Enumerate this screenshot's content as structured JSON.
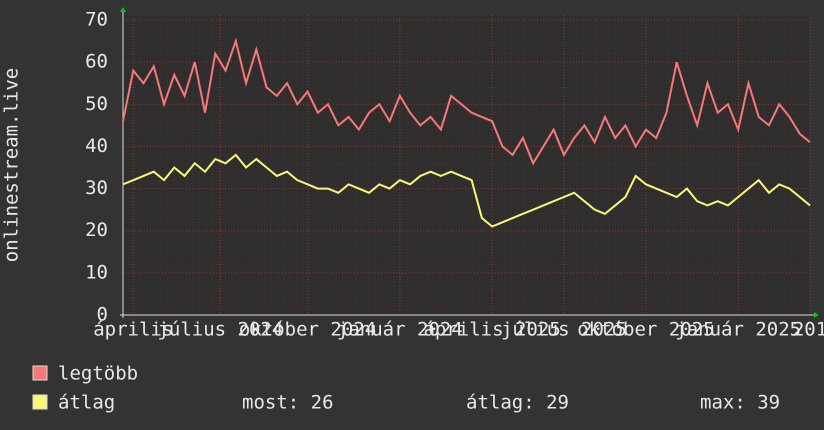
{
  "chart_data": {
    "type": "line",
    "y_label": "onlinestream.live",
    "xlim": [
      0,
      67
    ],
    "xticks": [
      {
        "value": 1,
        "label": "április"
      },
      {
        "value": 9.5,
        "label": "július 2024"
      },
      {
        "value": 18,
        "label": "október 2024"
      },
      {
        "value": 27,
        "label": "január 2024"
      },
      {
        "value": 36,
        "label": "április 2025"
      },
      {
        "value": 43,
        "label": "július 2025"
      },
      {
        "value": 51,
        "label": "október 2025"
      },
      {
        "value": 60,
        "label": "január 2025"
      },
      {
        "value": 67,
        "label": "201"
      }
    ],
    "ylim": [
      0,
      70
    ],
    "yticks": [
      0,
      10,
      20,
      30,
      40,
      50,
      60,
      70
    ],
    "grid": true,
    "series": [
      {
        "name": "legtöbb",
        "color": "#f87878",
        "values": [
          46,
          58,
          55,
          59,
          50,
          57,
          52,
          60,
          48,
          62,
          58,
          65,
          55,
          63,
          54,
          52,
          55,
          50,
          53,
          48,
          50,
          45,
          47,
          44,
          48,
          50,
          46,
          52,
          48,
          45,
          47,
          44,
          52,
          50,
          48,
          47,
          46,
          40,
          38,
          42,
          36,
          40,
          44,
          38,
          42,
          45,
          41,
          47,
          42,
          45,
          40,
          44,
          42,
          48,
          60,
          52,
          45,
          55,
          48,
          50,
          44,
          55,
          47,
          45,
          50,
          47,
          43,
          41
        ]
      },
      {
        "name": "átlag",
        "color": "#f8f878",
        "values": [
          31,
          32,
          33,
          34,
          32,
          35,
          33,
          36,
          34,
          37,
          36,
          38,
          35,
          37,
          35,
          33,
          34,
          32,
          31,
          30,
          30,
          29,
          31,
          30,
          29,
          31,
          30,
          32,
          31,
          33,
          34,
          33,
          34,
          33,
          32,
          23,
          21,
          22,
          23,
          24,
          25,
          26,
          27,
          28,
          29,
          27,
          25,
          24,
          26,
          28,
          33,
          31,
          30,
          29,
          28,
          30,
          27,
          26,
          27,
          26,
          28,
          30,
          32,
          29,
          31,
          30,
          28,
          26
        ]
      }
    ],
    "stats": [
      "most: 26",
      "átlag: 29",
      "max: 39"
    ]
  }
}
